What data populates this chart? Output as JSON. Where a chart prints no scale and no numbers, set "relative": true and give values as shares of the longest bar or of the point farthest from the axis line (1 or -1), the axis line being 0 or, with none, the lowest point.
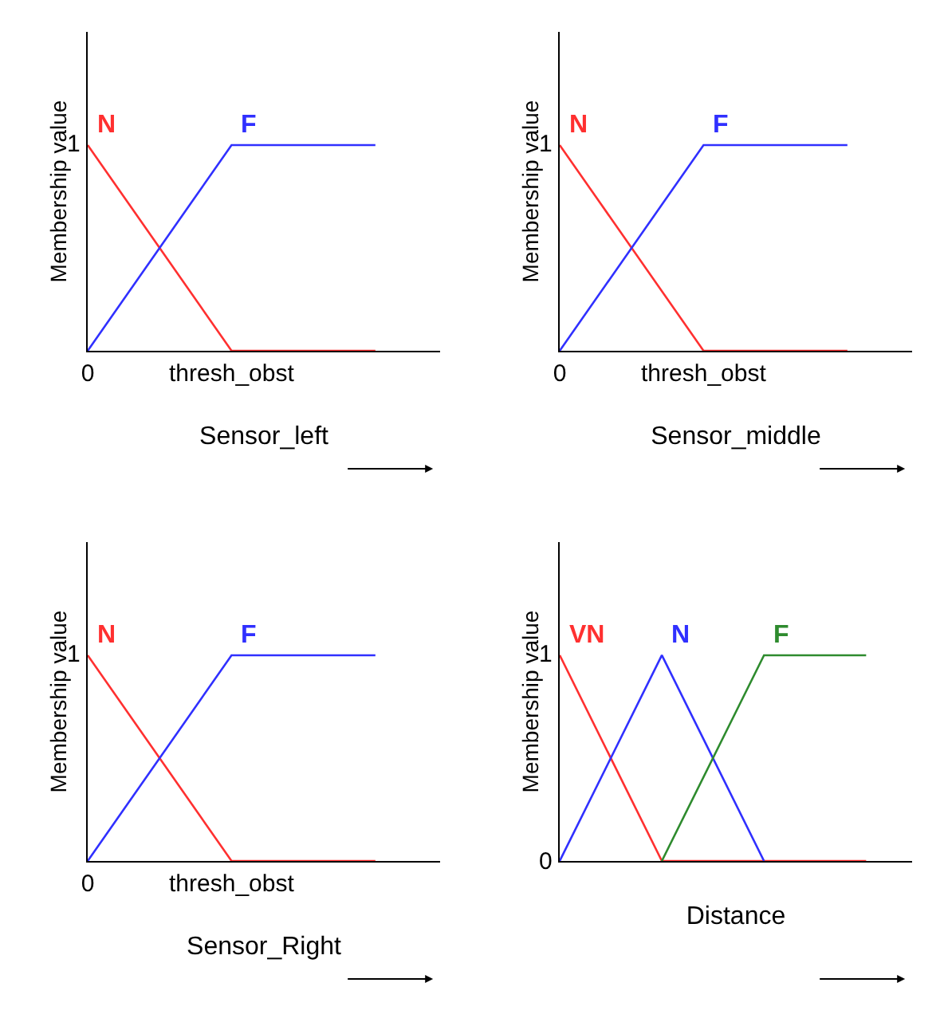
{
  "chart_data": [
    {
      "type": "line",
      "xlabel": "Sensor_left",
      "ylabel": "Membership value",
      "relative": true,
      "categories": [
        "0",
        "thresh_obst",
        null
      ],
      "annotations": [
        "1"
      ],
      "grid": false,
      "legend": false,
      "marker": "none",
      "line_style": "solid",
      "series": [
        {
          "name": "N",
          "color": "#ff3030",
          "values": [
            1,
            0,
            0
          ]
        },
        {
          "name": "F",
          "color": "#3030ff",
          "values": [
            0,
            1,
            1
          ]
        }
      ]
    },
    {
      "type": "line",
      "xlabel": "Sensor_middle",
      "ylabel": "Membership value",
      "relative": true,
      "categories": [
        "0",
        "thresh_obst",
        null
      ],
      "annotations": [
        "1"
      ],
      "grid": false,
      "legend": false,
      "marker": "none",
      "line_style": "solid",
      "series": [
        {
          "name": "N",
          "color": "#ff3030",
          "values": [
            1,
            0,
            0
          ]
        },
        {
          "name": "F",
          "color": "#3030ff",
          "values": [
            0,
            1,
            1
          ]
        }
      ]
    },
    {
      "type": "line",
      "xlabel": "Sensor_Right",
      "ylabel": "Membership value",
      "relative": true,
      "categories": [
        "0",
        "thresh_obst",
        null
      ],
      "annotations": [
        "1"
      ],
      "grid": false,
      "legend": false,
      "marker": "none",
      "line_style": "solid",
      "series": [
        {
          "name": "N",
          "color": "#ff3030",
          "values": [
            1,
            0,
            0
          ]
        },
        {
          "name": "F",
          "color": "#3030ff",
          "values": [
            0,
            1,
            1
          ]
        }
      ]
    },
    {
      "type": "line",
      "xlabel": "Distance",
      "ylabel": "Membership value",
      "relative": true,
      "categories": [
        null,
        null,
        null,
        null
      ],
      "annotations": [
        "1",
        "0"
      ],
      "grid": false,
      "legend": false,
      "marker": "none",
      "line_style": "solid",
      "series": [
        {
          "name": "VN",
          "color": "#ff3030",
          "values": [
            1,
            0,
            0,
            0
          ]
        },
        {
          "name": "N",
          "color": "#3030ff",
          "values": [
            0,
            1,
            0,
            null
          ]
        },
        {
          "name": "F",
          "color": "#2e8b2e",
          "values": [
            null,
            0,
            1,
            1
          ]
        }
      ]
    }
  ]
}
